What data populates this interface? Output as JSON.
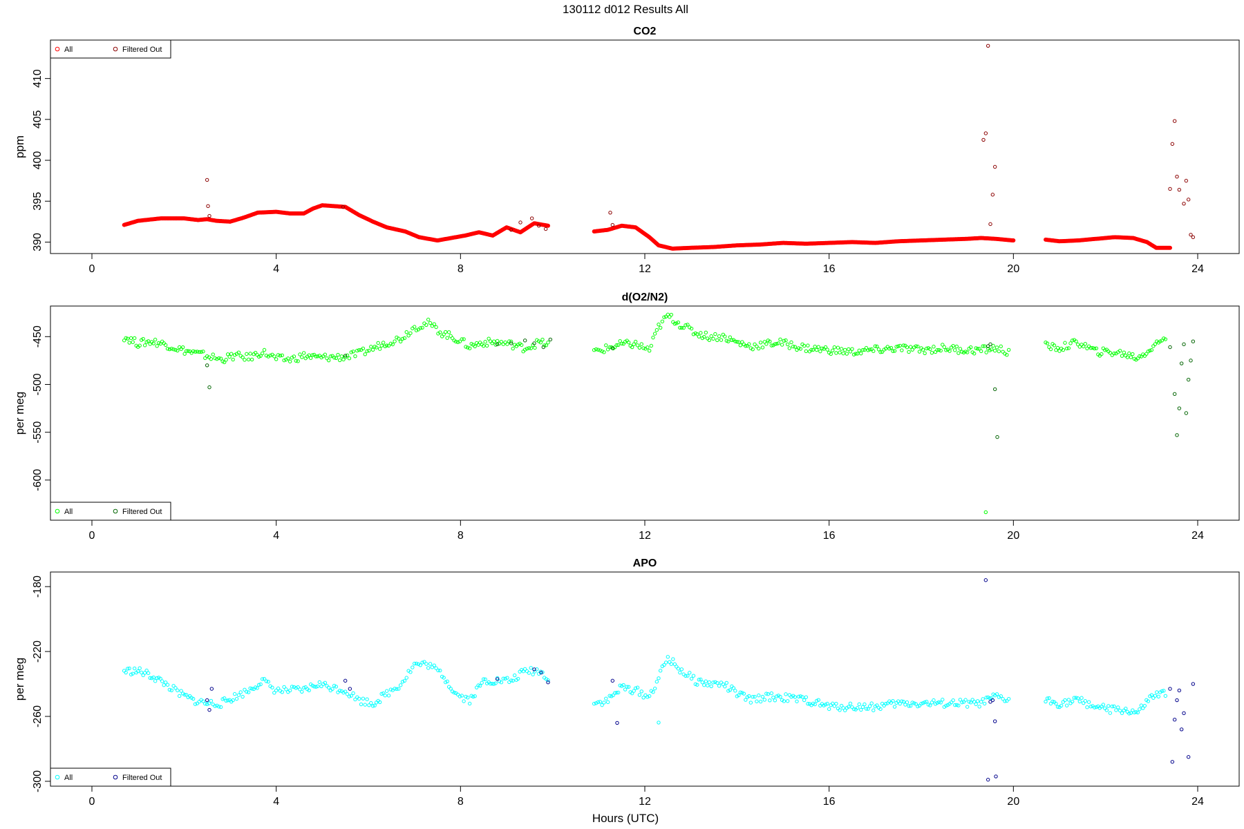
{
  "page_title": "130112   d012   Results All",
  "x_axis_label": "Hours (UTC)",
  "chart_data": [
    {
      "type": "scatter",
      "title": "CO2",
      "xlabel": "Hours (UTC)",
      "ylabel": "ppm",
      "xlim": [
        -0.9,
        24.9
      ],
      "ylim": [
        388.6,
        414.7
      ],
      "xticks": [
        0,
        4,
        8,
        12,
        16,
        20,
        24
      ],
      "yticks": [
        390,
        395,
        400,
        405,
        410
      ],
      "legend": {
        "position": "top-left",
        "entries": [
          "All",
          "Filtered Out"
        ]
      },
      "colors": {
        "all": "#ff0000",
        "filtered": "#8b0000"
      },
      "series": [
        {
          "name": "All",
          "x": [
            0.7,
            1.0,
            1.5,
            2.0,
            2.3,
            2.5,
            2.7,
            3.0,
            3.3,
            3.6,
            4.0,
            4.3,
            4.6,
            4.8,
            5.0,
            5.5,
            5.8,
            6.1,
            6.4,
            6.8,
            7.1,
            7.5,
            7.8,
            8.1,
            8.4,
            8.7,
            9.0,
            9.3,
            9.6,
            9.9,
            10.9,
            11.2,
            11.5,
            11.8,
            12.1,
            12.3,
            12.6,
            13.0,
            13.5,
            14.0,
            14.5,
            15.0,
            15.5,
            16.0,
            16.5,
            17.0,
            17.5,
            18.0,
            18.5,
            19.0,
            19.3,
            19.6,
            20.0,
            20.7,
            21.0,
            21.4,
            21.8,
            22.2,
            22.6,
            22.9,
            23.1,
            23.4
          ],
          "y": [
            392.1,
            392.6,
            392.9,
            392.9,
            392.7,
            392.8,
            392.6,
            392.5,
            393.0,
            393.6,
            393.7,
            393.5,
            393.5,
            394.1,
            394.5,
            394.3,
            393.3,
            392.5,
            391.8,
            391.3,
            390.6,
            390.2,
            390.5,
            390.8,
            391.2,
            390.8,
            391.8,
            391.2,
            392.3,
            392.0,
            391.3,
            391.5,
            392.0,
            391.8,
            390.6,
            389.6,
            389.2,
            389.3,
            389.4,
            389.6,
            389.7,
            389.9,
            389.8,
            389.9,
            390.0,
            389.9,
            390.1,
            390.2,
            390.3,
            390.4,
            390.5,
            390.4,
            390.2,
            390.3,
            390.1,
            390.2,
            390.4,
            390.6,
            390.5,
            390.0,
            389.3,
            389.3
          ]
        },
        {
          "name": "Filtered Out",
          "x": [
            2.5,
            2.52,
            2.55,
            5.45,
            9.1,
            9.3,
            9.55,
            9.7,
            9.85,
            11.25,
            11.3,
            19.35,
            19.4,
            19.45,
            19.5,
            19.55,
            19.6,
            23.4,
            23.45,
            23.5,
            23.55,
            23.6,
            23.7,
            23.75,
            23.8,
            23.85,
            23.9
          ],
          "y": [
            397.6,
            394.4,
            393.2,
            394.3,
            391.5,
            392.4,
            392.9,
            392.0,
            391.6,
            393.6,
            392.1,
            402.5,
            403.3,
            414.0,
            392.2,
            395.8,
            399.2,
            396.5,
            402.0,
            404.8,
            398.0,
            396.4,
            394.7,
            397.5,
            395.2,
            390.9,
            390.6
          ]
        }
      ]
    },
    {
      "type": "scatter",
      "title": "d(O2/N2)",
      "xlabel": "Hours (UTC)",
      "ylabel": "per meg",
      "xlim": [
        -0.9,
        24.9
      ],
      "ylim": [
        -642,
        -418
      ],
      "xticks": [
        0,
        4,
        8,
        12,
        16,
        20,
        24
      ],
      "yticks": [
        -600,
        -550,
        -500,
        -450
      ],
      "legend": {
        "position": "bottom-left",
        "entries": [
          "All",
          "Filtered Out"
        ]
      },
      "colors": {
        "all": "#00ff00",
        "filtered": "#006400"
      },
      "series": [
        {
          "name": "All",
          "x": [
            0.7,
            1.0,
            1.3,
            1.6,
            1.9,
            2.2,
            2.5,
            2.8,
            3.1,
            3.4,
            3.7,
            4.0,
            4.3,
            4.6,
            4.9,
            5.5,
            5.8,
            6.1,
            6.4,
            6.7,
            7.0,
            7.3,
            7.6,
            7.9,
            8.2,
            8.5,
            8.8,
            9.1,
            9.4,
            9.7,
            9.9,
            10.9,
            11.2,
            11.5,
            11.8,
            12.1,
            12.3,
            12.5,
            12.8,
            13.1,
            13.4,
            13.7,
            14.0,
            14.3,
            14.6,
            14.9,
            15.5,
            16.0,
            16.5,
            17.0,
            17.5,
            18.0,
            18.5,
            19.0,
            19.3,
            19.6,
            19.9,
            20.7,
            21.0,
            21.4,
            21.8,
            22.1,
            22.4,
            22.7,
            23.0,
            23.3,
            19.4
          ],
          "y": [
            -450,
            -457,
            -455,
            -458,
            -463,
            -467,
            -470,
            -474,
            -470,
            -472,
            -466,
            -473,
            -474,
            -470,
            -472,
            -471,
            -468,
            -462,
            -456,
            -452,
            -440,
            -436,
            -446,
            -452,
            -460,
            -456,
            -456,
            -458,
            -462,
            -456,
            -458,
            -466,
            -462,
            -458,
            -458,
            -464,
            -440,
            -428,
            -438,
            -446,
            -450,
            -450,
            -456,
            -460,
            -458,
            -456,
            -462,
            -464,
            -466,
            -464,
            -462,
            -464,
            -462,
            -464,
            -464,
            -462,
            -466,
            -460,
            -462,
            -456,
            -466,
            -466,
            -468,
            -472,
            -462,
            -450,
            -632
          ]
        },
        {
          "name": "Filtered Out",
          "x": [
            2.5,
            2.55,
            5.5,
            8.8,
            9.1,
            9.4,
            9.6,
            9.8,
            9.95,
            11.3,
            19.45,
            19.5,
            19.6,
            19.65,
            23.4,
            23.5,
            23.55,
            23.6,
            23.65,
            23.7,
            23.75,
            23.8,
            23.85,
            23.9
          ],
          "y": [
            -480,
            -503,
            -470,
            -458,
            -457,
            -454,
            -457,
            -461,
            -453,
            -462,
            -460,
            -458,
            -505,
            -555,
            -461,
            -510,
            -553,
            -525,
            -478,
            -458,
            -530,
            -495,
            -475,
            -455
          ]
        }
      ]
    },
    {
      "type": "scatter",
      "title": "APO",
      "xlabel": "Hours (UTC)",
      "ylabel": "per meg",
      "xlim": [
        -0.9,
        24.9
      ],
      "ylim": [
        -303,
        -171
      ],
      "xticks": [
        0,
        4,
        8,
        12,
        16,
        20,
        24
      ],
      "yticks": [
        -300,
        -260,
        -220,
        -180
      ],
      "legend": {
        "position": "bottom-left",
        "entries": [
          "All",
          "Filtered Out"
        ]
      },
      "colors": {
        "all": "#00ffff",
        "filtered": "#00008b"
      },
      "series": [
        {
          "name": "All",
          "x": [
            0.7,
            1.0,
            1.3,
            1.6,
            1.9,
            2.2,
            2.5,
            2.8,
            3.1,
            3.4,
            3.7,
            4.0,
            4.3,
            4.6,
            4.9,
            5.5,
            5.8,
            6.1,
            6.4,
            6.7,
            7.0,
            7.3,
            7.6,
            7.9,
            8.2,
            8.5,
            8.8,
            9.1,
            9.4,
            9.7,
            9.9,
            10.9,
            11.2,
            11.5,
            11.8,
            12.1,
            12.3,
            12.5,
            12.8,
            13.1,
            13.4,
            13.7,
            14.0,
            14.3,
            14.6,
            14.9,
            15.5,
            16.0,
            16.5,
            17.0,
            17.5,
            18.0,
            18.5,
            19.0,
            19.3,
            19.6,
            19.9,
            20.7,
            21.0,
            21.4,
            21.8,
            22.1,
            22.4,
            22.7,
            23.0,
            23.3,
            12.3
          ],
          "y": [
            -232,
            -232,
            -235,
            -240,
            -246,
            -250,
            -252,
            -252,
            -248,
            -244,
            -238,
            -244,
            -244,
            -244,
            -240,
            -244,
            -250,
            -252,
            -246,
            -240,
            -228,
            -228,
            -234,
            -246,
            -250,
            -238,
            -238,
            -238,
            -232,
            -232,
            -236,
            -252,
            -250,
            -242,
            -244,
            -248,
            -236,
            -224,
            -232,
            -238,
            -240,
            -240,
            -246,
            -250,
            -248,
            -248,
            -250,
            -254,
            -254,
            -254,
            -252,
            -252,
            -252,
            -252,
            -252,
            -248,
            -250,
            -250,
            -252,
            -250,
            -254,
            -256,
            -256,
            -258,
            -248,
            -246,
            -262
          ]
        },
        {
          "name": "Filtered Out",
          "x": [
            2.5,
            2.55,
            2.6,
            5.5,
            5.6,
            8.8,
            9.6,
            9.75,
            9.9,
            11.3,
            11.4,
            19.4,
            19.45,
            19.5,
            19.55,
            19.6,
            19.62,
            23.4,
            23.45,
            23.5,
            23.55,
            23.6,
            23.65,
            23.7,
            23.8,
            23.9
          ],
          "y": [
            -250,
            -256,
            -243,
            -238,
            -243,
            -237,
            -231,
            -233,
            -239,
            -238,
            -264,
            -176,
            -299,
            -251,
            -250,
            -263,
            -297,
            -243,
            -288,
            -262,
            -250,
            -244,
            -268,
            -258,
            -285,
            -240
          ]
        }
      ]
    }
  ]
}
